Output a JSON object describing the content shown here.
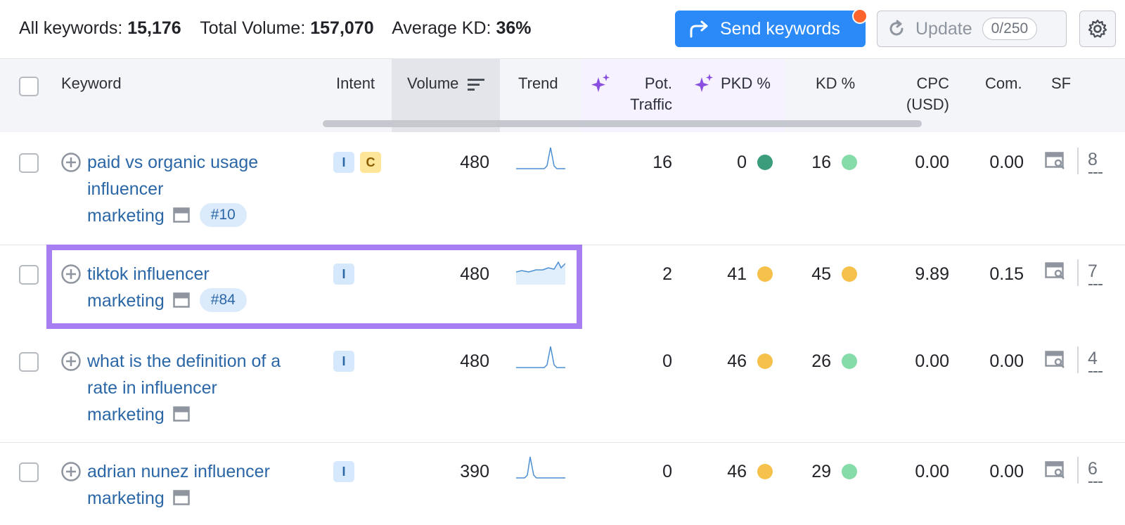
{
  "summary": {
    "all_keywords_label": "All keywords:",
    "all_keywords_value": "15,176",
    "total_volume_label": "Total Volume:",
    "total_volume_value": "157,070",
    "avg_kd_label": "Average KD:",
    "avg_kd_value": "36%"
  },
  "toolbar": {
    "send_label": "Send keywords",
    "update_label": "Update",
    "update_quota": "0/250"
  },
  "columns": {
    "keyword": "Keyword",
    "intent": "Intent",
    "volume": "Volume",
    "trend": "Trend",
    "pot_traffic_1": "Pot.",
    "pot_traffic_2": "Traffic",
    "pkd": "PKD %",
    "kd": "KD %",
    "cpc_1": "CPC",
    "cpc_2": "(USD)",
    "com": "Com.",
    "sf": "SF"
  },
  "rows": [
    {
      "kw1": "paid vs organic usage",
      "kw2": "influencer",
      "kw3": "marketing",
      "rank": "#10",
      "intent1": "I",
      "intent2": "C",
      "volume": "480",
      "pot": "16",
      "pkd": "0",
      "kd": "16",
      "cpc": "0.00",
      "com": "0.00",
      "sf": "8",
      "pkd_color": "#3a9c7a",
      "kd_color": "#86dca9"
    },
    {
      "kw1": "tiktok influencer",
      "kw2": "marketing",
      "rank": "#84",
      "intent1": "I",
      "volume": "480",
      "pot": "2",
      "pkd": "41",
      "kd": "45",
      "cpc": "9.89",
      "com": "0.15",
      "sf": "7",
      "pkd_color": "#f5c14b",
      "kd_color": "#f5c14b"
    },
    {
      "kw1": "what is the definition of a",
      "kw2": "rate in influencer",
      "kw3": "marketing",
      "intent1": "I",
      "volume": "480",
      "pot": "0",
      "pkd": "46",
      "kd": "26",
      "cpc": "0.00",
      "com": "0.00",
      "sf": "4",
      "pkd_color": "#f5c14b",
      "kd_color": "#86dca9"
    },
    {
      "kw1": "adrian nunez influencer",
      "kw2": "marketing",
      "intent1": "I",
      "volume": "390",
      "pot": "0",
      "pkd": "46",
      "kd": "29",
      "cpc": "0.00",
      "com": "0.00",
      "sf": "6",
      "pkd_color": "#f5c14b",
      "kd_color": "#86dca9"
    }
  ]
}
